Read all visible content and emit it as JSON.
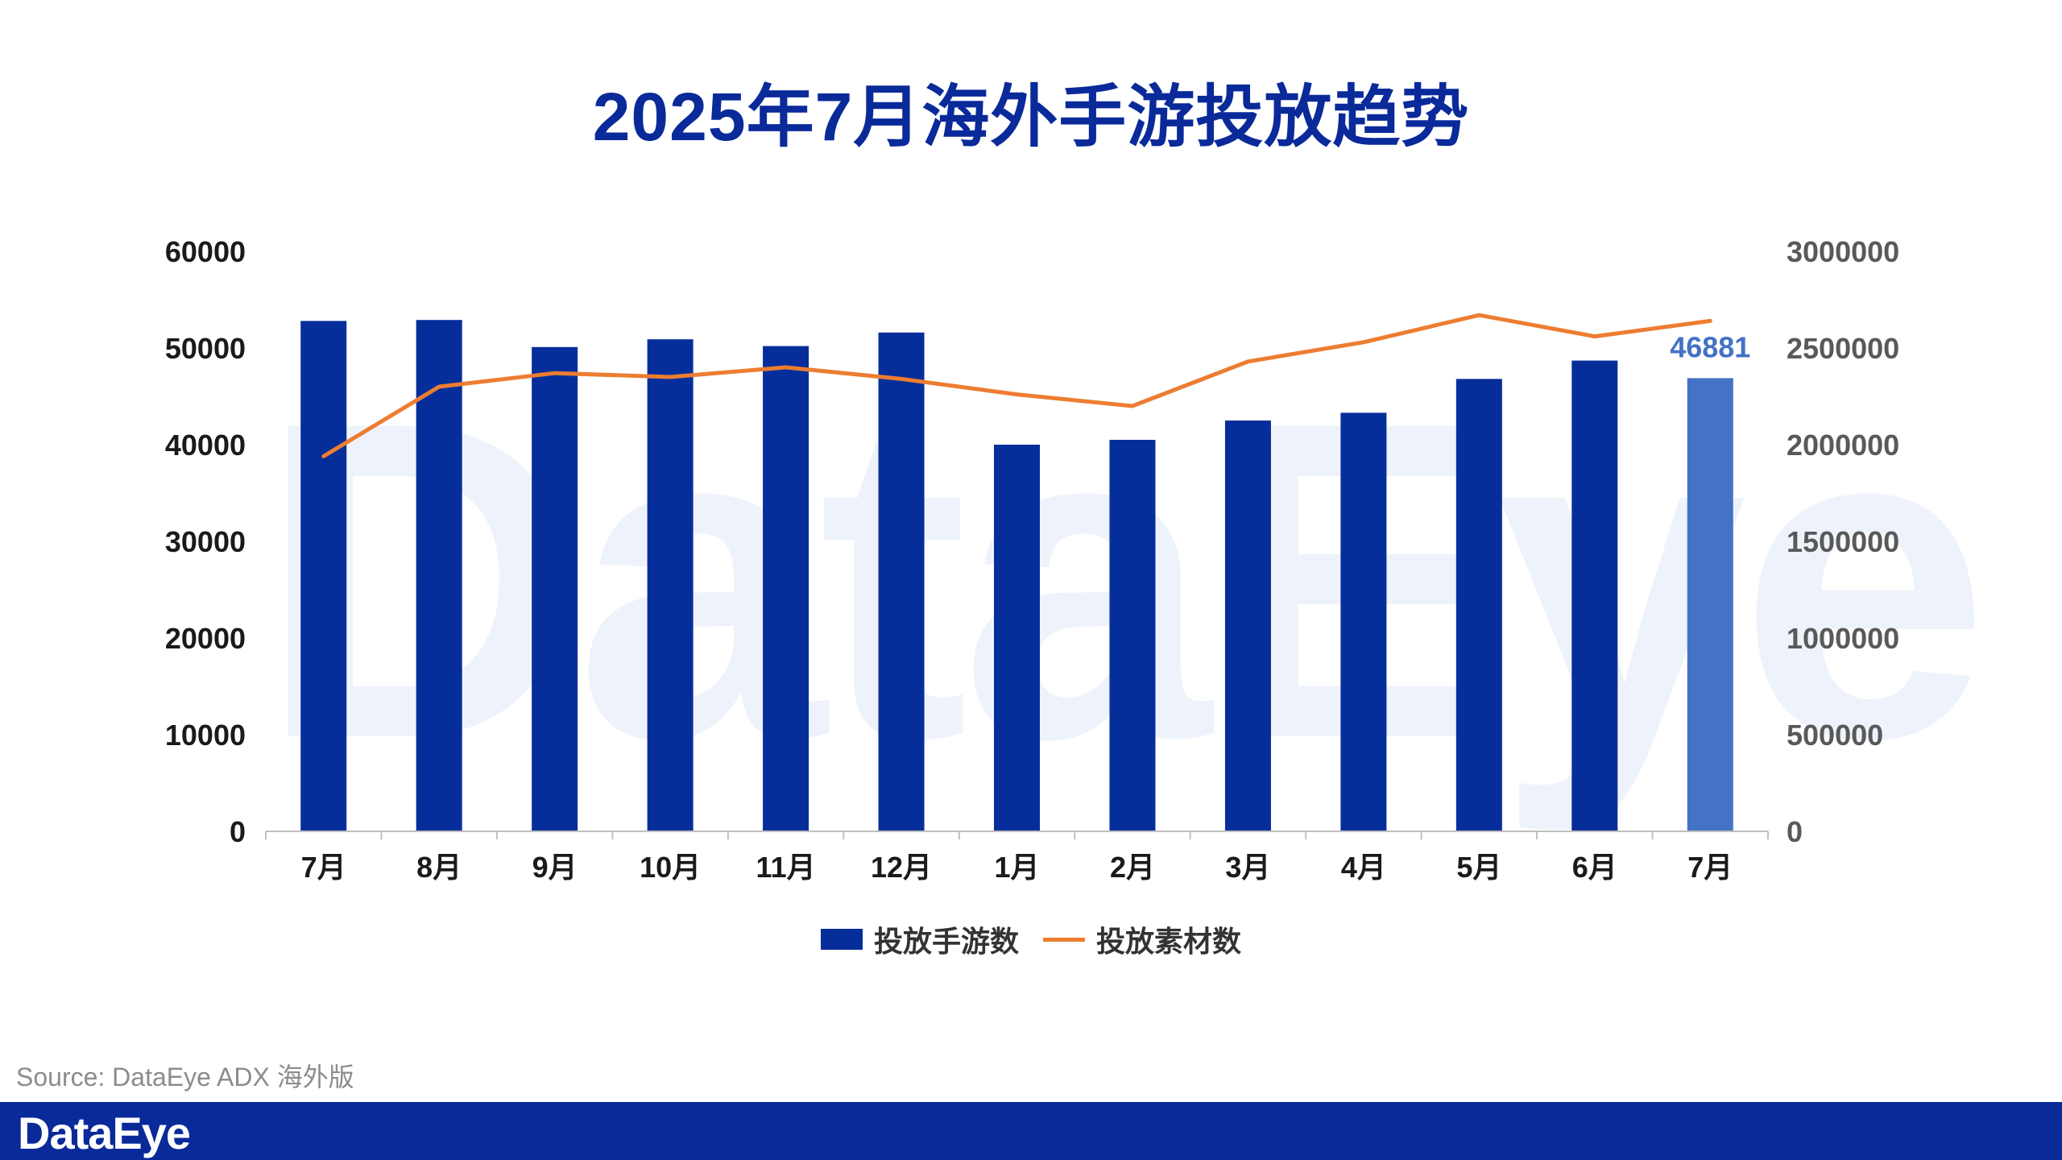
{
  "title": "2025年7月海外手游投放趋势",
  "watermark": "DataEye",
  "source": "Source: DataEye ADX 海外版",
  "footer": {
    "logo": "DataEye"
  },
  "legend": {
    "bar_label": "投放手游数",
    "line_label": "投放素材数"
  },
  "colors": {
    "bar": "#062e9b",
    "bar_highlight": "#4472c4",
    "line": "#ed7d31",
    "title": "#0a2a9a"
  },
  "chart_data": {
    "type": "bar",
    "categories": [
      "7月",
      "8月",
      "9月",
      "10月",
      "11月",
      "12月",
      "1月",
      "2月",
      "3月",
      "4月",
      "5月",
      "6月",
      "7月"
    ],
    "series": [
      {
        "name": "投放手游数",
        "type": "bar",
        "axis": "left",
        "values": [
          52800,
          52900,
          50100,
          50900,
          50200,
          51600,
          40000,
          40500,
          42500,
          43300,
          46800,
          48700,
          46881
        ]
      },
      {
        "name": "投放素材数",
        "type": "line",
        "axis": "right",
        "values": [
          1940000,
          2300000,
          2370000,
          2350000,
          2400000,
          2340000,
          2260000,
          2200000,
          2430000,
          2530000,
          2670000,
          2560000,
          2640000
        ]
      }
    ],
    "highlight_index": 12,
    "data_label": "46881",
    "left_ticks": [
      "0",
      "10000",
      "20000",
      "30000",
      "40000",
      "50000",
      "60000"
    ],
    "right_ticks": [
      "0",
      "500000",
      "1000000",
      "1500000",
      "2000000",
      "2500000",
      "3000000"
    ],
    "ylim_left": [
      0,
      60000
    ],
    "ylim_right": [
      0,
      3000000
    ],
    "legend_position": "bottom-center"
  }
}
